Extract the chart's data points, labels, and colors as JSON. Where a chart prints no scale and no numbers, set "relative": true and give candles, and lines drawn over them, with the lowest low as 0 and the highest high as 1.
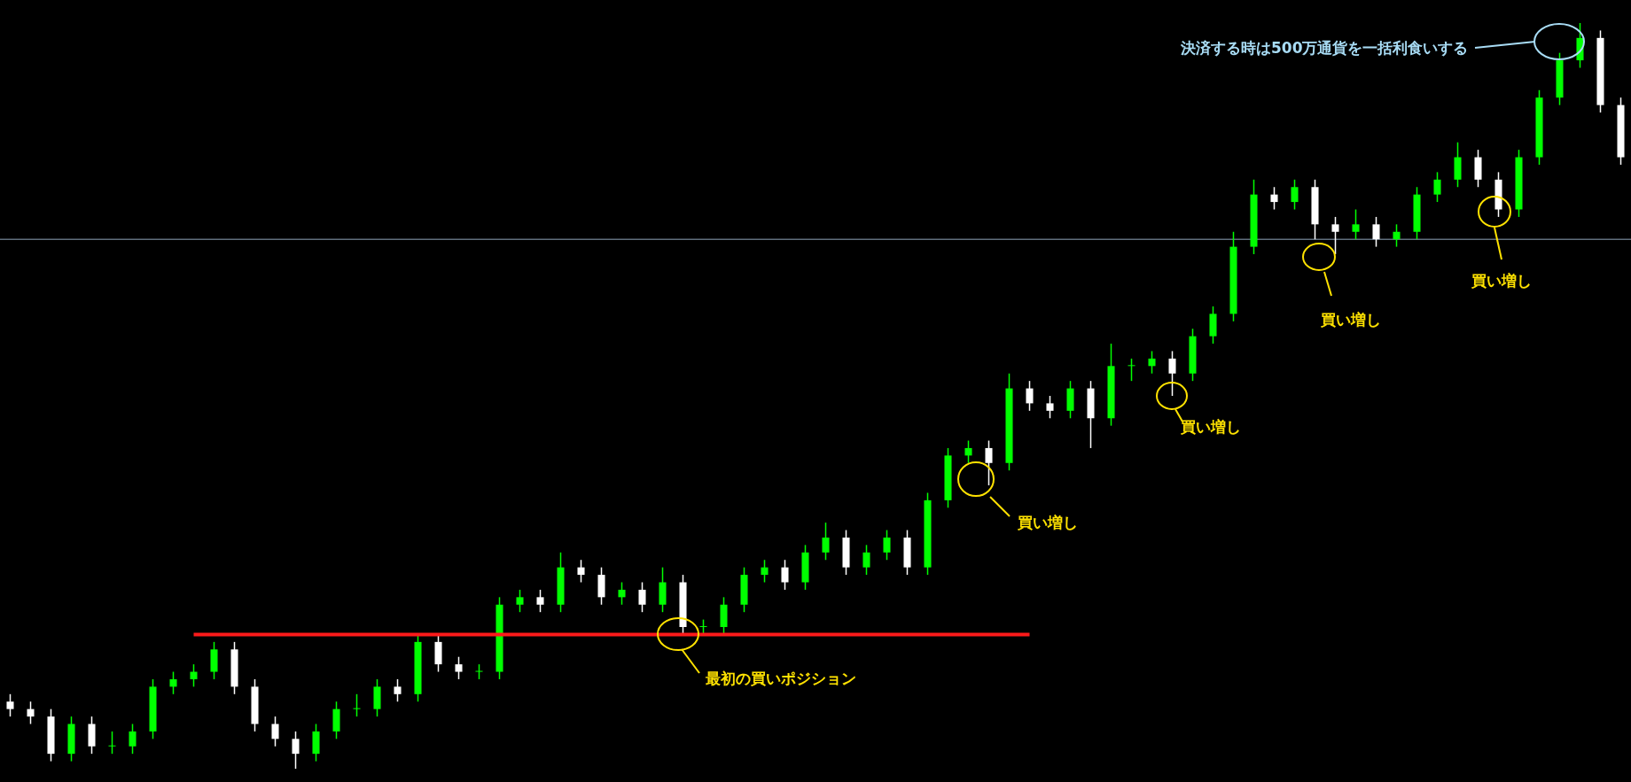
{
  "chart_data": {
    "type": "candlestick",
    "relative": true,
    "colors": [
      "#ffffff",
      "#ffffff",
      "#ffffff",
      "#00ff00",
      "#ffffff",
      "#00ff00",
      "#00ff00",
      "#00ff00",
      "#00ff00",
      "#00ff00",
      "#00ff00",
      "#ffffff",
      "#ffffff",
      "#ffffff",
      "#ffffff",
      "#00ff00",
      "#00ff00",
      "#00ff00",
      "#00ff00",
      "#ffffff",
      "#00ff00",
      "#ffffff",
      "#ffffff",
      "#00ff00",
      "#00ff00",
      "#00ff00",
      "#ffffff",
      "#00ff00",
      "#ffffff",
      "#ffffff",
      "#00ff00",
      "#ffffff",
      "#00ff00",
      "#ffffff",
      "#00ff00",
      "#00ff00",
      "#00ff00",
      "#00ff00",
      "#ffffff",
      "#00ff00",
      "#00ff00",
      "#ffffff",
      "#00ff00",
      "#00ff00",
      "#ffffff",
      "#00ff00",
      "#00ff00",
      "#00ff00",
      "#ffffff",
      "#00ff00",
      "#ffffff",
      "#ffffff",
      "#00ff00",
      "#ffffff",
      "#00ff00",
      "#00ff00",
      "#00ff00",
      "#ffffff",
      "#00ff00",
      "#00ff00",
      "#00ff00",
      "#00ff00",
      "#ffffff",
      "#00ff00",
      "#ffffff",
      "#ffffff",
      "#00ff00",
      "#ffffff",
      "#00ff00",
      "#00ff00",
      "#00ff00",
      "#00ff00",
      "#ffffff",
      "#ffffff",
      "#00ff00",
      "#00ff00",
      "#00ff00",
      "#00ff00",
      "#ffffff",
      "#ffffff"
    ],
    "categories": [
      null,
      null,
      null,
      null,
      null,
      null,
      null,
      null,
      null,
      null,
      null,
      null,
      null,
      null,
      null,
      null,
      null,
      null,
      null,
      null,
      null,
      null,
      null,
      null,
      null,
      null,
      null,
      null,
      null,
      null,
      null,
      null,
      null,
      null,
      null,
      null,
      null,
      null,
      null,
      null,
      null,
      null,
      null,
      null,
      null,
      null,
      null,
      null,
      null,
      null,
      null,
      null,
      null,
      null,
      null,
      null,
      null,
      null,
      null,
      null,
      null,
      null,
      null,
      null,
      null,
      null,
      null,
      null,
      null,
      null,
      null,
      null,
      null,
      null,
      null,
      null,
      null,
      null,
      null,
      null
    ],
    "ohlc": [
      [
        0.09,
        0.1,
        0.07,
        0.08
      ],
      [
        0.08,
        0.09,
        0.06,
        0.07
      ],
      [
        0.07,
        0.08,
        0.01,
        0.02
      ],
      [
        0.02,
        0.07,
        0.01,
        0.06
      ],
      [
        0.06,
        0.07,
        0.02,
        0.03
      ],
      [
        0.03,
        0.05,
        0.02,
        0.03
      ],
      [
        0.03,
        0.06,
        0.02,
        0.05
      ],
      [
        0.05,
        0.12,
        0.04,
        0.11
      ],
      [
        0.11,
        0.13,
        0.1,
        0.12
      ],
      [
        0.12,
        0.14,
        0.11,
        0.13
      ],
      [
        0.13,
        0.17,
        0.12,
        0.16
      ],
      [
        0.16,
        0.17,
        0.1,
        0.11
      ],
      [
        0.11,
        0.12,
        0.05,
        0.06
      ],
      [
        0.06,
        0.07,
        0.03,
        0.04
      ],
      [
        0.04,
        0.05,
        0.0,
        0.02
      ],
      [
        0.02,
        0.06,
        0.01,
        0.05
      ],
      [
        0.05,
        0.09,
        0.04,
        0.08
      ],
      [
        0.08,
        0.1,
        0.07,
        0.08
      ],
      [
        0.08,
        0.12,
        0.07,
        0.11
      ],
      [
        0.11,
        0.12,
        0.09,
        0.1
      ],
      [
        0.1,
        0.18,
        0.09,
        0.17
      ],
      [
        0.17,
        0.18,
        0.13,
        0.14
      ],
      [
        0.14,
        0.15,
        0.12,
        0.13
      ],
      [
        0.13,
        0.14,
        0.12,
        0.13
      ],
      [
        0.13,
        0.23,
        0.12,
        0.22
      ],
      [
        0.22,
        0.24,
        0.21,
        0.23
      ],
      [
        0.23,
        0.24,
        0.21,
        0.22
      ],
      [
        0.22,
        0.29,
        0.21,
        0.27
      ],
      [
        0.27,
        0.28,
        0.25,
        0.26
      ],
      [
        0.26,
        0.27,
        0.22,
        0.23
      ],
      [
        0.23,
        0.25,
        0.22,
        0.24
      ],
      [
        0.24,
        0.25,
        0.21,
        0.22
      ],
      [
        0.22,
        0.27,
        0.21,
        0.25
      ],
      [
        0.25,
        0.26,
        0.18,
        0.19
      ],
      [
        0.19,
        0.2,
        0.18,
        0.19
      ],
      [
        0.19,
        0.23,
        0.18,
        0.22
      ],
      [
        0.22,
        0.27,
        0.21,
        0.26
      ],
      [
        0.26,
        0.28,
        0.25,
        0.27
      ],
      [
        0.27,
        0.28,
        0.24,
        0.25
      ],
      [
        0.25,
        0.3,
        0.24,
        0.29
      ],
      [
        0.29,
        0.33,
        0.28,
        0.31
      ],
      [
        0.31,
        0.32,
        0.26,
        0.27
      ],
      [
        0.27,
        0.3,
        0.26,
        0.29
      ],
      [
        0.29,
        0.32,
        0.28,
        0.31
      ],
      [
        0.31,
        0.32,
        0.26,
        0.27
      ],
      [
        0.27,
        0.37,
        0.26,
        0.36
      ],
      [
        0.36,
        0.43,
        0.35,
        0.42
      ],
      [
        0.42,
        0.44,
        0.41,
        0.43
      ],
      [
        0.43,
        0.44,
        0.38,
        0.41
      ],
      [
        0.41,
        0.53,
        0.4,
        0.51
      ],
      [
        0.51,
        0.52,
        0.48,
        0.49
      ],
      [
        0.49,
        0.5,
        0.47,
        0.48
      ],
      [
        0.48,
        0.52,
        0.47,
        0.51
      ],
      [
        0.51,
        0.52,
        0.43,
        0.47
      ],
      [
        0.47,
        0.57,
        0.46,
        0.54
      ],
      [
        0.54,
        0.55,
        0.52,
        0.54
      ],
      [
        0.54,
        0.56,
        0.53,
        0.55
      ],
      [
        0.55,
        0.56,
        0.5,
        0.53
      ],
      [
        0.53,
        0.59,
        0.52,
        0.58
      ],
      [
        0.58,
        0.62,
        0.57,
        0.61
      ],
      [
        0.61,
        0.72,
        0.6,
        0.7
      ],
      [
        0.7,
        0.79,
        0.69,
        0.77
      ],
      [
        0.77,
        0.78,
        0.75,
        0.76
      ],
      [
        0.76,
        0.79,
        0.75,
        0.78
      ],
      [
        0.78,
        0.79,
        0.71,
        0.73
      ],
      [
        0.73,
        0.74,
        0.69,
        0.72
      ],
      [
        0.72,
        0.75,
        0.71,
        0.73
      ],
      [
        0.73,
        0.74,
        0.7,
        0.71
      ],
      [
        0.71,
        0.73,
        0.7,
        0.72
      ],
      [
        0.72,
        0.78,
        0.71,
        0.77
      ],
      [
        0.77,
        0.8,
        0.76,
        0.79
      ],
      [
        0.79,
        0.84,
        0.78,
        0.82
      ],
      [
        0.82,
        0.83,
        0.78,
        0.79
      ],
      [
        0.79,
        0.8,
        0.74,
        0.75
      ],
      [
        0.75,
        0.83,
        0.74,
        0.82
      ],
      [
        0.82,
        0.91,
        0.81,
        0.9
      ],
      [
        0.9,
        0.96,
        0.89,
        0.95
      ],
      [
        0.95,
        1.0,
        0.94,
        0.98
      ],
      [
        0.98,
        0.99,
        0.88,
        0.89
      ],
      [
        0.89,
        0.9,
        0.81,
        0.82
      ]
    ],
    "series": [
      {
        "type": "line",
        "color": "#ff1a1a",
        "values": [
          null,
          null,
          null,
          null,
          null,
          null,
          null,
          null,
          null,
          0.18,
          0.18,
          0.18,
          0.18,
          0.18,
          0.18,
          0.18,
          0.18,
          0.18,
          0.18,
          0.18,
          0.18,
          0.18,
          0.18,
          0.18,
          0.18,
          0.18,
          0.18,
          0.18,
          0.18,
          0.18,
          0.18,
          0.18,
          0.18,
          0.18,
          0.18,
          0.18,
          0.18,
          0.18,
          0.18,
          0.18,
          0.18,
          0.18,
          0.18,
          0.18,
          0.18,
          0.18,
          0.18,
          0.18,
          0.18,
          0.18,
          0.18,
          null,
          null,
          null,
          null,
          null,
          null,
          null,
          null,
          null,
          null,
          null,
          null,
          null,
          null,
          null,
          null,
          null,
          null,
          null,
          null,
          null,
          null,
          null,
          null,
          null,
          null,
          null,
          null,
          null
        ]
      }
    ],
    "ref_lines": [
      {
        "axis": "y",
        "value": 0.71,
        "color": "#8fa3b8"
      }
    ],
    "annotations": [
      "決済する時は500万通貨を一括利食いする",
      "最初の買いポジション",
      "買い増し",
      "買い増し",
      "買い増し",
      "買い増し"
    ],
    "legend": false
  }
}
